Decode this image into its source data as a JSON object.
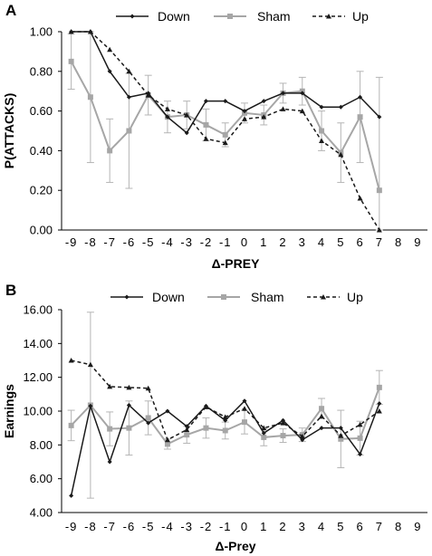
{
  "chart_data": [
    {
      "panel": "A",
      "type": "line",
      "xlabel": "Δ-PREY",
      "ylabel": "P(ATTACKS)",
      "categories": [
        "-9",
        "-8",
        "-7",
        "-6",
        "-5",
        "-4",
        "-3",
        "-2",
        "-1",
        "0",
        "1",
        "2",
        "3",
        "4",
        "5",
        "6",
        "7",
        "8",
        "9"
      ],
      "ylim": [
        0,
        1
      ],
      "yticks": [
        0.0,
        0.2,
        0.4,
        0.6,
        0.8,
        1.0
      ],
      "ytick_labels": [
        "0.00",
        "0.20",
        "0.40",
        "0.60",
        "0.80",
        "1.00"
      ],
      "grid": false,
      "legend": "top",
      "series": [
        {
          "name": "Down",
          "color": "#1a1a1a",
          "dash": "solid",
          "marker": "diamond",
          "values": [
            1.0,
            1.0,
            0.8,
            0.67,
            0.69,
            0.57,
            0.49,
            0.65,
            0.65,
            0.6,
            0.65,
            0.69,
            0.69,
            0.62,
            0.62,
            0.67,
            0.57,
            null,
            null
          ]
        },
        {
          "name": "Sham",
          "color": "#a6a6a6",
          "dash": "solid",
          "marker": "square",
          "values": [
            0.85,
            0.67,
            0.4,
            0.5,
            0.68,
            0.57,
            0.58,
            0.53,
            0.48,
            0.59,
            0.58,
            0.69,
            0.7,
            0.5,
            0.39,
            0.57,
            0.2,
            null,
            null
          ],
          "errors": [
            0.14,
            0.33,
            0.16,
            0.29,
            0.1,
            0.08,
            0.07,
            0.08,
            0.06,
            0.05,
            0.05,
            0.05,
            0.07,
            0.1,
            0.15,
            0.23,
            0.57,
            null,
            null
          ]
        },
        {
          "name": "Up",
          "color": "#1a1a1a",
          "dash": "dashed",
          "marker": "triangle",
          "values": [
            1.0,
            1.0,
            0.91,
            0.8,
            0.68,
            0.61,
            0.58,
            0.46,
            0.44,
            0.56,
            0.57,
            0.61,
            0.6,
            0.45,
            0.38,
            0.16,
            0.0,
            null,
            null
          ]
        }
      ]
    },
    {
      "panel": "B",
      "type": "line",
      "xlabel": "Δ-Prey",
      "ylabel": "Earnings",
      "categories": [
        "-9",
        "-8",
        "-7",
        "-6",
        "-5",
        "-4",
        "-3",
        "-2",
        "-1",
        "0",
        "1",
        "2",
        "3",
        "4",
        "5",
        "6",
        "7",
        "8",
        "9"
      ],
      "ylim": [
        4,
        16
      ],
      "yticks": [
        4,
        6,
        8,
        10,
        12,
        14,
        16
      ],
      "ytick_labels": [
        "4.00",
        "6.00",
        "8.00",
        "10.00",
        "12.00",
        "14.00",
        "16.00"
      ],
      "grid": false,
      "legend": "top",
      "series": [
        {
          "name": "Down",
          "color": "#1a1a1a",
          "dash": "solid",
          "marker": "diamond",
          "values": [
            5.0,
            10.3,
            7.0,
            10.35,
            9.3,
            10.0,
            9.1,
            10.3,
            9.45,
            10.6,
            8.7,
            9.45,
            8.3,
            9.0,
            9.0,
            7.45,
            10.45,
            null,
            null
          ]
        },
        {
          "name": "Sham",
          "color": "#a6a6a6",
          "dash": "solid",
          "marker": "square",
          "values": [
            9.15,
            10.35,
            8.95,
            9.0,
            9.6,
            8.05,
            8.6,
            9.0,
            8.85,
            9.35,
            8.45,
            8.55,
            8.6,
            10.15,
            8.35,
            8.4,
            11.4,
            null,
            null
          ],
          "errors": [
            0.9,
            5.5,
            1.0,
            1.6,
            1.0,
            0.3,
            0.5,
            0.6,
            0.5,
            0.7,
            0.5,
            0.4,
            0.4,
            0.6,
            1.7,
            1.0,
            1.0,
            null,
            null
          ]
        },
        {
          "name": "Up",
          "color": "#1a1a1a",
          "dash": "dashed",
          "marker": "triangle",
          "values": [
            13.0,
            12.75,
            11.45,
            11.4,
            11.35,
            8.3,
            8.9,
            10.25,
            9.65,
            10.15,
            9.0,
            9.3,
            8.5,
            9.7,
            8.55,
            9.2,
            10.0,
            null,
            null
          ]
        }
      ]
    }
  ]
}
